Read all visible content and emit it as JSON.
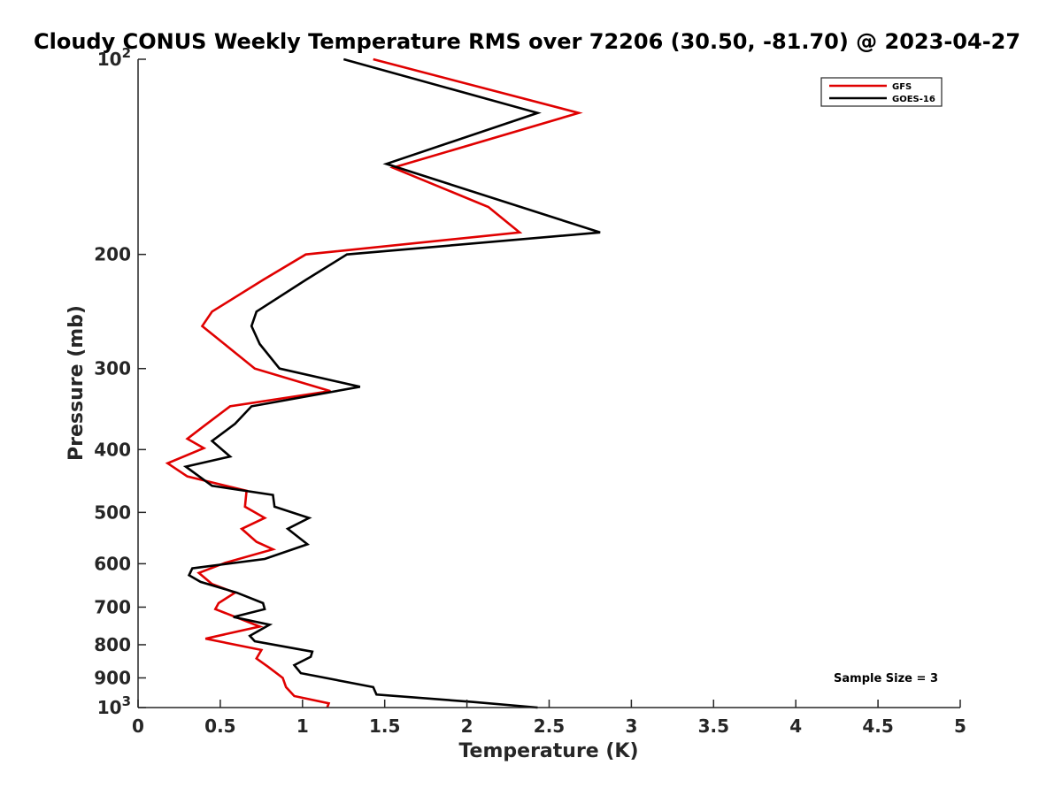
{
  "chart_data": {
    "type": "line",
    "title": "Cloudy CONUS Weekly Temperature RMS over 72206 (30.50, -81.70) @ 2023-04-27",
    "xlabel": "Temperature (K)",
    "ylabel": "Pressure (mb)",
    "xlim": [
      0,
      5
    ],
    "ylim": [
      1000,
      100
    ],
    "y_scale": "log",
    "x_ticks": [
      "0",
      "0.5",
      "1",
      "1.5",
      "2",
      "2.5",
      "3",
      "3.5",
      "4",
      "4.5",
      "5"
    ],
    "y_ticks": [
      {
        "value": 100,
        "base": "10",
        "exp": "2"
      },
      {
        "value": 200,
        "label": "200"
      },
      {
        "value": 300,
        "label": "300"
      },
      {
        "value": 400,
        "label": "400"
      },
      {
        "value": 500,
        "label": "500"
      },
      {
        "value": 600,
        "label": "600"
      },
      {
        "value": 700,
        "label": "700"
      },
      {
        "value": 800,
        "label": "800"
      },
      {
        "value": 900,
        "label": "900"
      },
      {
        "value": 1000,
        "base": "10",
        "exp": "3"
      }
    ],
    "grid": false,
    "legend_position": "top-right",
    "annotation": "Sample Size = 3",
    "series": [
      {
        "name": "GFS",
        "color": "#e00000",
        "points": [
          [
            1.43,
            100
          ],
          [
            2.68,
            121
          ],
          [
            1.55,
            147
          ],
          [
            2.13,
            169
          ],
          [
            2.32,
            185
          ],
          [
            1.02,
            200
          ],
          [
            0.76,
            219
          ],
          [
            0.45,
            245
          ],
          [
            0.39,
            258
          ],
          [
            0.71,
            300
          ],
          [
            1.17,
            325
          ],
          [
            0.56,
            343
          ],
          [
            0.4,
            368
          ],
          [
            0.3,
            385
          ],
          [
            0.4,
            398
          ],
          [
            0.18,
            420
          ],
          [
            0.3,
            440
          ],
          [
            0.66,
            463
          ],
          [
            0.65,
            490
          ],
          [
            0.77,
            510
          ],
          [
            0.63,
            530
          ],
          [
            0.72,
            555
          ],
          [
            0.82,
            570
          ],
          [
            0.53,
            598
          ],
          [
            0.37,
            620
          ],
          [
            0.45,
            645
          ],
          [
            0.59,
            665
          ],
          [
            0.49,
            690
          ],
          [
            0.47,
            705
          ],
          [
            0.74,
            750
          ],
          [
            0.41,
            783
          ],
          [
            0.75,
            815
          ],
          [
            0.72,
            840
          ],
          [
            0.79,
            865
          ],
          [
            0.88,
            900
          ],
          [
            0.9,
            930
          ],
          [
            0.95,
            960
          ],
          [
            1.16,
            985
          ],
          [
            1.15,
            1000
          ]
        ]
      },
      {
        "name": "GOES-16",
        "color": "#000000",
        "points": [
          [
            1.25,
            100
          ],
          [
            2.43,
            121
          ],
          [
            1.51,
            145
          ],
          [
            2.81,
            185
          ],
          [
            1.27,
            200
          ],
          [
            1.02,
            219
          ],
          [
            0.72,
            245
          ],
          [
            0.69,
            258
          ],
          [
            0.74,
            275
          ],
          [
            0.86,
            300
          ],
          [
            1.35,
            320
          ],
          [
            0.69,
            343
          ],
          [
            0.59,
            365
          ],
          [
            0.45,
            388
          ],
          [
            0.56,
            410
          ],
          [
            0.29,
            425
          ],
          [
            0.45,
            455
          ],
          [
            0.82,
            470
          ],
          [
            0.83,
            490
          ],
          [
            1.04,
            510
          ],
          [
            0.91,
            530
          ],
          [
            1.03,
            560
          ],
          [
            0.77,
            590
          ],
          [
            0.33,
            610
          ],
          [
            0.31,
            625
          ],
          [
            0.38,
            640
          ],
          [
            0.6,
            665
          ],
          [
            0.76,
            690
          ],
          [
            0.77,
            705
          ],
          [
            0.58,
            725
          ],
          [
            0.8,
            745
          ],
          [
            0.68,
            775
          ],
          [
            0.71,
            790
          ],
          [
            1.06,
            820
          ],
          [
            1.05,
            835
          ],
          [
            0.95,
            860
          ],
          [
            0.99,
            885
          ],
          [
            1.43,
            930
          ],
          [
            1.45,
            955
          ],
          [
            2.03,
            980
          ],
          [
            2.43,
            1000
          ]
        ]
      }
    ]
  }
}
